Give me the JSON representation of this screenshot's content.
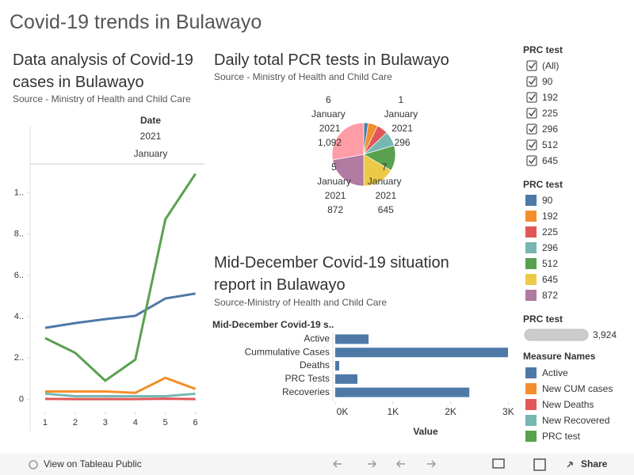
{
  "title": "Covid-19 trends in Bulawayo",
  "chart_data": [
    {
      "type": "line",
      "title": "Data analysis of Covid-19 cases in Bulawayo",
      "subtitle": "Source - Ministry of Health and Child Care",
      "column_header": [
        "Date",
        "2021",
        "January"
      ],
      "x": [
        1,
        2,
        3,
        4,
        5,
        6
      ],
      "xlim": [
        0.5,
        6.3
      ],
      "xticks": [
        1,
        2,
        3,
        4,
        5,
        6
      ],
      "ylim": [
        -60,
        1140
      ],
      "yticks": [
        0,
        {
          "value": 200,
          "label": "2.."
        },
        {
          "value": 400,
          "label": "4.."
        },
        {
          "value": 600,
          "label": "6.."
        },
        {
          "value": 800,
          "label": "8.."
        },
        {
          "value": 1000,
          "label": "1.."
        }
      ],
      "series": [
        {
          "name": "Active",
          "color": "#4e79a7",
          "values": [
            346,
            369,
            388,
            404,
            488,
            512
          ]
        },
        {
          "name": "New CUM cases",
          "color": "#f28e2b",
          "values": [
            38,
            38,
            38,
            31,
            104,
            50
          ]
        },
        {
          "name": "New Deaths",
          "color": "#e15759",
          "values": [
            2,
            1,
            1,
            1,
            3,
            1
          ]
        },
        {
          "name": "New Recovered",
          "color": "#76b7b2",
          "values": [
            27,
            15,
            15,
            15,
            15,
            27
          ]
        },
        {
          "name": "PRC test",
          "color": "#59a14f",
          "values": [
            296,
            225,
            90,
            192,
            872,
            1092
          ]
        }
      ]
    },
    {
      "type": "pie",
      "title": "Daily total PCR tests in Bulawayo",
      "subtitle": "Source - Ministry of Health and Child Care",
      "categories": [
        null,
        null,
        null,
        "1 January 2021",
        null,
        "7 January 2021",
        "5 January 2021",
        "6 January 2021"
      ],
      "values": [
        90,
        192,
        225,
        296,
        512,
        645,
        872,
        1092
      ],
      "value_labels": [
        null,
        null,
        null,
        "296",
        null,
        "645",
        "872",
        "1,092"
      ],
      "colors": [
        "#4e79a7",
        "#f28e2b",
        "#e15759",
        "#76b7b2",
        "#59a14f",
        "#edc948",
        "#b07aa1",
        "#ff9da7"
      ]
    },
    {
      "type": "bar",
      "orientation": "horizontal",
      "title": "Mid-December Covid-19 situation report in Bulawayo",
      "subtitle": "Source-Ministry of Health and Child Care",
      "header": "Mid-December Covid-19 s..",
      "categories": [
        "Active",
        "Cummulative Cases",
        "Deaths",
        "PRC Tests",
        "Recoveries"
      ],
      "values": [
        578,
        2995,
        69,
        385,
        2325
      ],
      "color": "#4e79a7",
      "xlim": [
        0,
        3050
      ],
      "xticks": [
        {
          "value": 0,
          "label": "0K"
        },
        {
          "value": 1000,
          "label": "1K"
        },
        {
          "value": 2000,
          "label": "2K"
        },
        {
          "value": 3000,
          "label": "3K"
        }
      ],
      "xlabel": "Value"
    }
  ],
  "checklist": {
    "title": "PRC test",
    "all": "(All)",
    "items": [
      "90",
      "192",
      "225",
      "296",
      "512",
      "645"
    ]
  },
  "color_legend": {
    "title": "PRC test"
  },
  "slider": {
    "title": "PRC test",
    "value": {
      "value": 3924,
      "label": "3,924"
    }
  },
  "measure_legend": {
    "title": "Measure Names"
  },
  "toolbar": {
    "view": "View on Tableau Public",
    "share": "Share"
  }
}
